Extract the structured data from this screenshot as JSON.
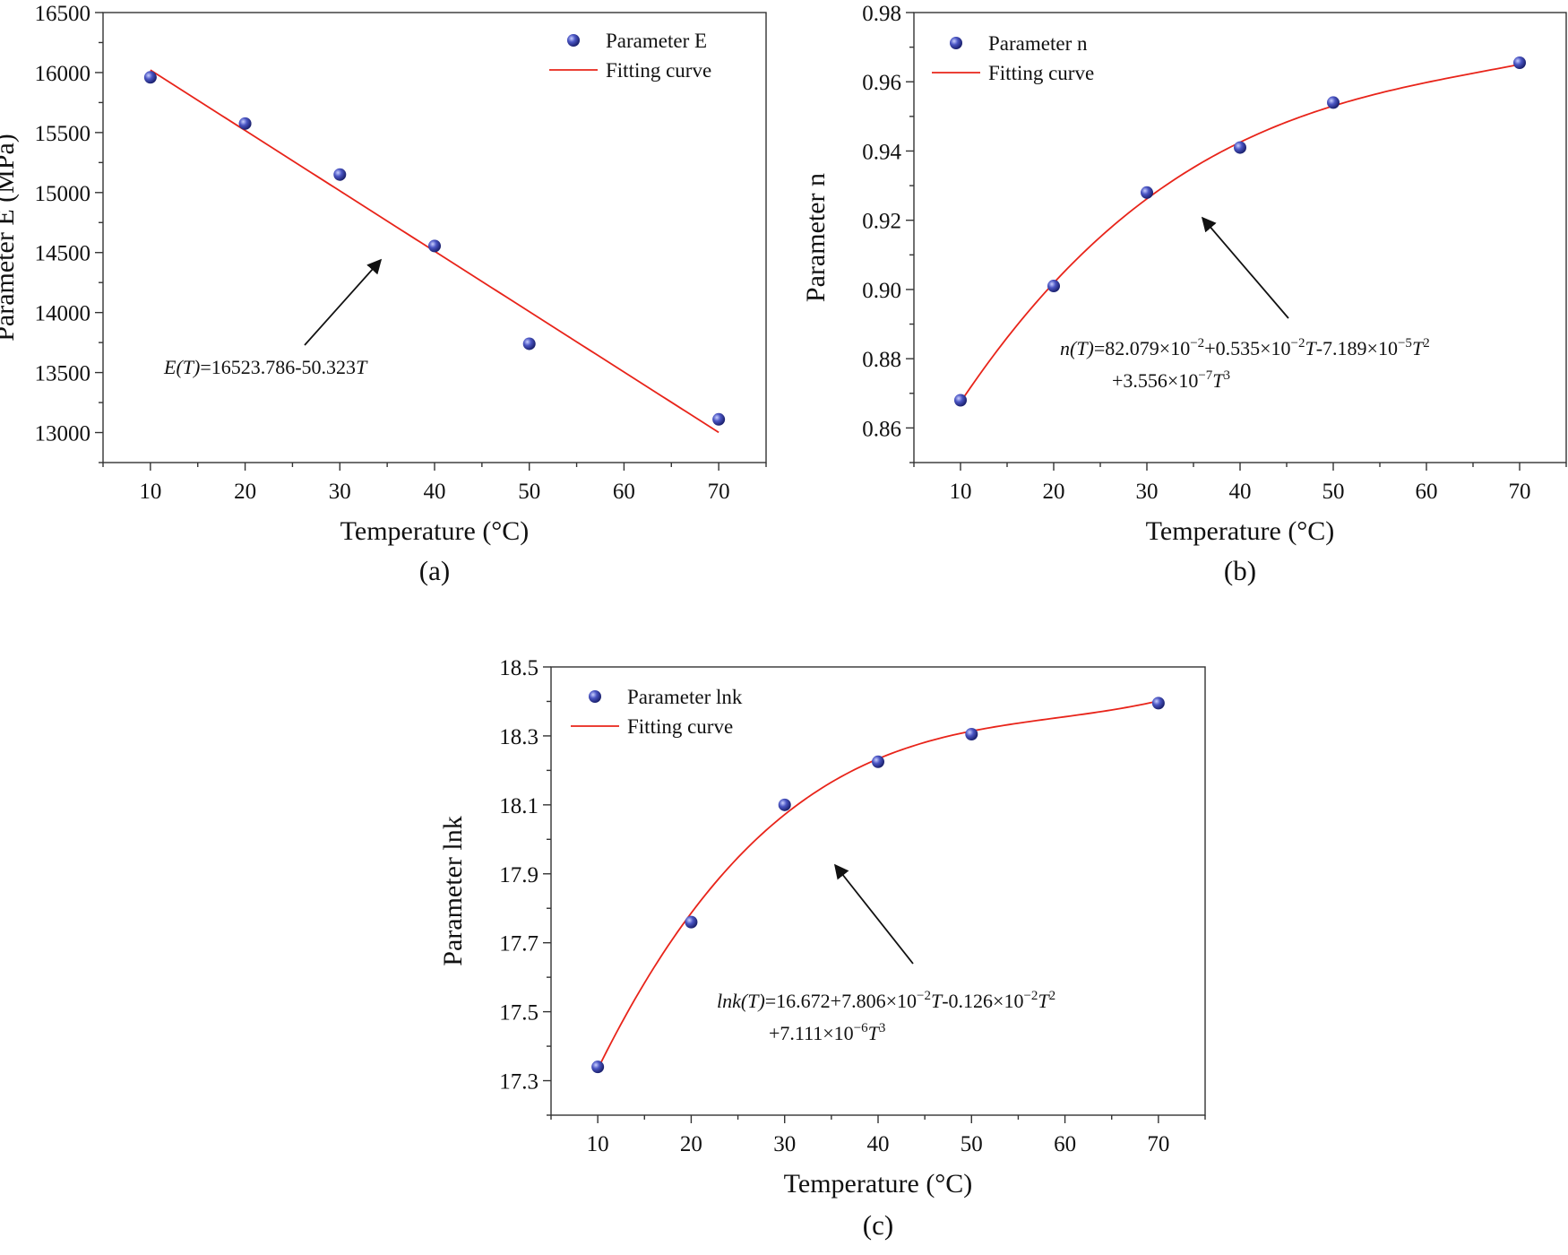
{
  "chart_data": [
    {
      "type": "scatter",
      "panel_label": "(a)",
      "xlabel": "Temperature (°C)",
      "ylabel": "Parameter E (MPa)",
      "xlim": [
        5,
        75
      ],
      "ylim": [
        12750,
        16500
      ],
      "xticks": [
        10,
        20,
        30,
        40,
        50,
        60,
        70
      ],
      "yticks": [
        13000,
        13500,
        14000,
        14500,
        15000,
        15500,
        16000,
        16500
      ],
      "x": [
        10,
        20,
        30,
        40,
        50,
        70
      ],
      "y": [
        15960,
        15575,
        15150,
        14555,
        13740,
        13110
      ],
      "series": [
        {
          "name": "Parameter E",
          "kind": "points"
        },
        {
          "name": "Fitting curve",
          "kind": "line",
          "coefficients": [
            16523.786,
            -50.323
          ]
        }
      ],
      "formula": {
        "line1": "E(T)=16523.786-50.323T",
        "line2": ""
      },
      "legend_position": "top-right"
    },
    {
      "type": "scatter",
      "panel_label": "(b)",
      "xlabel": "Temperature (°C)",
      "ylabel": "Parameter n",
      "xlim": [
        5,
        75
      ],
      "ylim": [
        0.85,
        0.98
      ],
      "xticks": [
        10,
        20,
        30,
        40,
        50,
        60,
        70
      ],
      "yticks": [
        0.86,
        0.88,
        0.9,
        0.92,
        0.94,
        0.96,
        0.98
      ],
      "x": [
        10,
        20,
        30,
        40,
        50,
        70
      ],
      "y": [
        0.868,
        0.901,
        0.928,
        0.941,
        0.954,
        0.9655
      ],
      "series": [
        {
          "name": "Parameter n",
          "kind": "points"
        },
        {
          "name": "Fitting curve",
          "kind": "line",
          "coefficients": [
            0.82079,
            0.00535,
            -7.189e-05,
            3.556e-07
          ]
        }
      ],
      "formula": {
        "line1": "n(T)=82.079×10⁻²+0.535×10⁻²T-7.189×10⁻⁵T²",
        "line2": "+3.556×10⁻⁷T³"
      },
      "legend_position": "top-left"
    },
    {
      "type": "scatter",
      "panel_label": "(c)",
      "xlabel": "Temperature (°C)",
      "ylabel": "Parameter lnk",
      "xlim": [
        5,
        75
      ],
      "ylim": [
        17.2,
        18.5
      ],
      "xticks": [
        10,
        20,
        30,
        40,
        50,
        60,
        70
      ],
      "yticks": [
        17.3,
        17.5,
        17.7,
        17.9,
        18.1,
        18.3,
        18.5
      ],
      "x": [
        10,
        20,
        30,
        40,
        50,
        70
      ],
      "y": [
        17.34,
        17.76,
        18.1,
        18.225,
        18.305,
        18.395
      ],
      "series": [
        {
          "name": "Parameter lnk",
          "kind": "points"
        },
        {
          "name": "Fitting curve",
          "kind": "line",
          "coefficients": [
            16.672,
            0.07806,
            -0.00126,
            7.111e-06
          ]
        }
      ],
      "formula": {
        "line1": "lnk(T)=16.672+7.806×10⁻²T-0.126×10⁻²T²",
        "line2": "+7.111×10⁻⁶T³"
      },
      "legend_position": "top-left"
    }
  ],
  "colors": {
    "marker": "#2e3a9c",
    "marker_highlight": "#c9cfff",
    "fit_line": "#e8241a",
    "axis": "#333333"
  }
}
